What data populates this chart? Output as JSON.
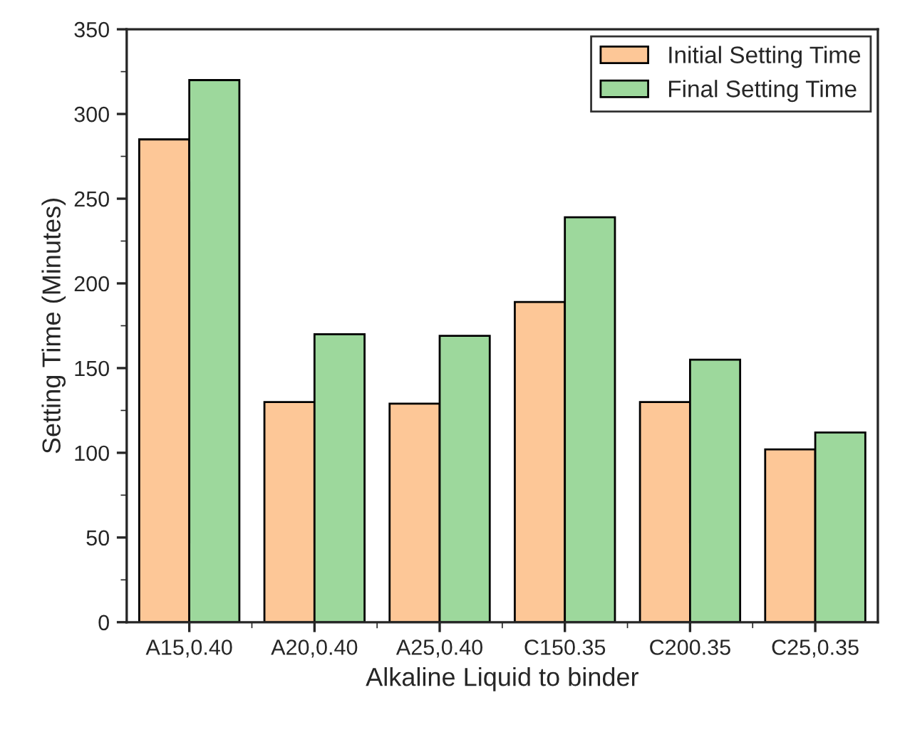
{
  "chart_data": {
    "type": "bar",
    "xlabel": "Alkaline Liquid to binder",
    "ylabel": "Setting Time (Minutes)",
    "categories": [
      "A15,0.40",
      "A20,0.40",
      "A25,0.40",
      "C150.35",
      "C200.35",
      "C25,0.35"
    ],
    "series": [
      {
        "name": "Initial Setting Time",
        "color": "#fdc797",
        "values": [
          285,
          130,
          129,
          189,
          130,
          102
        ]
      },
      {
        "name": "Final Setting Time",
        "color": "#9dd89c",
        "values": [
          320,
          170,
          169,
          239,
          155,
          112
        ]
      }
    ],
    "ylim": [
      0,
      350
    ],
    "yticks": [
      0,
      50,
      100,
      150,
      200,
      250,
      300,
      350
    ],
    "legend": "top right",
    "grid": false
  }
}
